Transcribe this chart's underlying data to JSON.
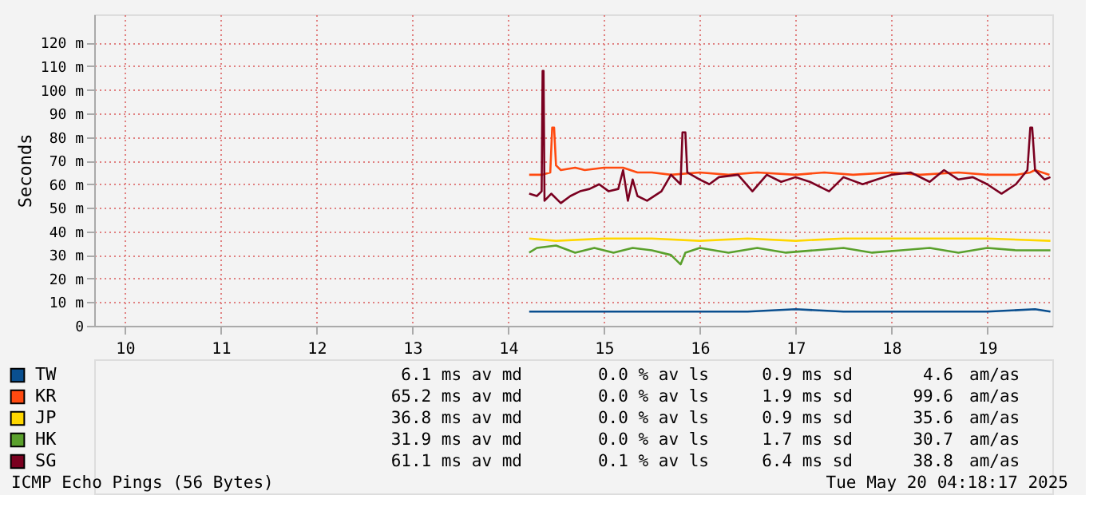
{
  "chart_data": {
    "type": "line",
    "ylabel": "Seconds",
    "xlim": [
      9.68,
      19.68
    ],
    "xticks": [
      10,
      11,
      12,
      13,
      14,
      15,
      16,
      17,
      18,
      19
    ],
    "ylim": [
      0,
      132
    ],
    "yticks": [
      0,
      {
        "value": 10,
        "label": "10 m"
      },
      {
        "value": 20,
        "label": "20 m"
      },
      {
        "value": 30,
        "label": "30 m"
      },
      {
        "value": 40,
        "label": "40 m"
      },
      {
        "value": 50,
        "label": "50 m"
      },
      {
        "value": 60,
        "label": "60 m"
      },
      {
        "value": 70,
        "label": "70 m"
      },
      {
        "value": 80,
        "label": "80 m"
      },
      {
        "value": 90,
        "label": "90 m"
      },
      {
        "value": 100,
        "label": "100 m"
      },
      {
        "value": 110,
        "label": "110 m"
      },
      {
        "value": 120,
        "label": "120 m"
      }
    ],
    "grid": true,
    "legend": "bottom",
    "line_style": "solid",
    "series": [
      {
        "name": "TW",
        "color": "#0a4f8f",
        "x": [
          14.22,
          14.6,
          15.0,
          15.5,
          16.0,
          16.5,
          17.0,
          17.5,
          18.0,
          18.5,
          19.0,
          19.5,
          19.66
        ],
        "values": [
          6,
          6,
          6,
          6,
          6,
          6,
          7,
          6,
          6,
          6,
          6,
          7,
          6
        ]
      },
      {
        "name": "KR",
        "color": "#ff4a10",
        "x": [
          14.22,
          14.35,
          14.44,
          14.46,
          14.48,
          14.5,
          14.55,
          14.7,
          14.8,
          15.0,
          15.2,
          15.35,
          15.5,
          15.7,
          16.0,
          16.3,
          16.6,
          17.0,
          17.3,
          17.6,
          18.0,
          18.3,
          18.7,
          19.0,
          19.3,
          19.45,
          19.5,
          19.65
        ],
        "values": [
          64,
          64,
          65,
          84,
          84,
          68,
          66,
          67,
          66,
          67,
          67,
          65,
          65,
          64,
          65,
          64,
          65,
          64,
          65,
          64,
          65,
          64,
          65,
          64,
          64,
          65,
          66,
          64
        ]
      },
      {
        "name": "JP",
        "color": "#ffd700",
        "x": [
          14.22,
          14.5,
          15.0,
          15.5,
          16.0,
          16.5,
          17.0,
          17.5,
          18.0,
          18.5,
          19.0,
          19.66
        ],
        "values": [
          37,
          36,
          37,
          37,
          36,
          37,
          36,
          37,
          37,
          37,
          37,
          36
        ]
      },
      {
        "name": "HK",
        "color": "#5aa02c",
        "x": [
          14.22,
          14.3,
          14.5,
          14.7,
          14.9,
          15.1,
          15.3,
          15.5,
          15.7,
          15.8,
          15.85,
          16.0,
          16.3,
          16.6,
          16.9,
          17.2,
          17.5,
          17.8,
          18.1,
          18.4,
          18.7,
          19.0,
          19.3,
          19.66
        ],
        "values": [
          31,
          33,
          34,
          31,
          33,
          31,
          33,
          32,
          30,
          26,
          31,
          33,
          31,
          33,
          31,
          32,
          33,
          31,
          32,
          33,
          31,
          33,
          32,
          32
        ]
      },
      {
        "name": "SG",
        "color": "#7a0020",
        "x": [
          14.22,
          14.3,
          14.35,
          14.36,
          14.37,
          14.38,
          14.45,
          14.55,
          14.65,
          14.75,
          14.85,
          14.95,
          15.05,
          15.15,
          15.2,
          15.25,
          15.3,
          15.35,
          15.45,
          15.6,
          15.7,
          15.8,
          15.82,
          15.85,
          15.87,
          16.0,
          16.1,
          16.2,
          16.4,
          16.55,
          16.7,
          16.85,
          17.0,
          17.15,
          17.35,
          17.5,
          17.7,
          17.85,
          18.0,
          18.2,
          18.4,
          18.55,
          18.7,
          18.85,
          19.0,
          19.15,
          19.3,
          19.42,
          19.45,
          19.47,
          19.5,
          19.6,
          19.66
        ],
        "values": [
          56,
          55,
          57,
          108,
          108,
          53,
          56,
          52,
          55,
          57,
          58,
          60,
          57,
          58,
          66,
          53,
          62,
          55,
          53,
          57,
          64,
          60,
          82,
          82,
          65,
          62,
          60,
          63,
          64,
          57,
          64,
          61,
          63,
          61,
          57,
          63,
          60,
          62,
          64,
          65,
          61,
          66,
          62,
          63,
          60,
          56,
          60,
          66,
          84,
          84,
          66,
          62,
          63
        ]
      }
    ],
    "annotations": [
      "6.1 ms av md",
      "0.0 % av ls",
      "0.9 ms sd",
      "4.6",
      "am/as",
      "65.2 ms av md",
      "0.0 % av ls",
      "1.9 ms sd",
      "99.6",
      "am/as",
      "36.8 ms av md",
      "0.0 % av ls",
      "0.9 ms sd",
      "35.6",
      "am/as",
      "31.9 ms av md",
      "0.0 % av ls",
      "1.7 ms sd",
      "30.7",
      "am/as",
      "61.1 ms av md",
      "0.1 % av ls",
      "6.4 ms sd",
      "38.8",
      "am/as",
      "ICMP Echo Pings (56 Bytes)",
      "Tue May 20 04:18:17 2025"
    ]
  }
}
